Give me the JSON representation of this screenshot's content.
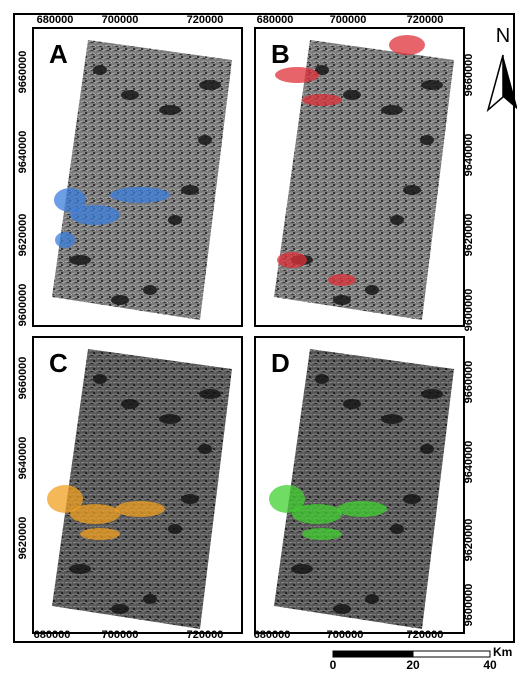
{
  "panels": [
    {
      "label": "A"
    },
    {
      "label": "B"
    },
    {
      "label": "C"
    },
    {
      "label": "D"
    }
  ],
  "axes": {
    "x_top_left": [
      680000,
      700000,
      720000
    ],
    "x_top_right": [
      680000,
      700000,
      720000
    ],
    "x_bottom_left": [
      680000,
      700000,
      720000
    ],
    "x_bottom_right": [
      680000,
      700000,
      720000
    ],
    "y_left_top": [
      9660000,
      9640000,
      9620000,
      9600000
    ],
    "y_left_bottom": [
      9660000,
      9640000,
      9620000
    ],
    "y_right_top": [
      9660000,
      9640000,
      9620000,
      9600000
    ],
    "y_right_bottom": [
      9660000,
      9640000,
      9620000,
      9600000
    ]
  },
  "north": "N",
  "scale_bar": {
    "unit": "Km",
    "labels": [
      0,
      20,
      40
    ]
  }
}
